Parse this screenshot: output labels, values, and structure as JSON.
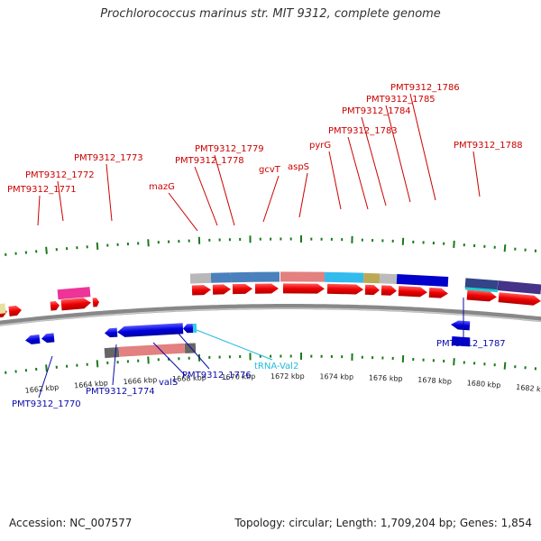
{
  "title": "Prochlorococcus marinus str. MIT 9312, complete genome",
  "footer": {
    "accession": "Accession: NC_007577",
    "summary": "Topology: circular; Length: 1,709,204 bp; Genes: 1,854"
  },
  "scale_labels": [
    "1662 kbp",
    "1664 kbp",
    "1666 kbp",
    "1668 kbp",
    "1670 kbp",
    "1672 kbp",
    "1674 kbp",
    "1676 kbp",
    "1678 kbp",
    "1680 kbp",
    "1682 kbp"
  ],
  "top_labels": [
    "PMT9312_1771",
    "PMT9312_1772",
    "PMT9312_1773",
    "mazG",
    "PMT9312_1778",
    "PMT9312_1779",
    "gcvT",
    "aspS",
    "pyrG",
    "PMT9312_1783",
    "PMT9312_1784",
    "PMT9312_1785",
    "PMT9312_1786",
    "PMT9312_1788"
  ],
  "bottom_labels": [
    "PMT9312_1770",
    "PMT9312_1774",
    "valS",
    "PMT9312_1776",
    "tRNA-Val2",
    "PMT9312_1787"
  ],
  "colors": {
    "forward_cds": "#ee0000",
    "reverse_cds": "#0000dd",
    "backbone": "#888888",
    "tick": "#1a7a1a",
    "top_label": "#cc0000",
    "bottom_label": "#0a0aa8",
    "rna_label": "#22bbdd"
  }
}
